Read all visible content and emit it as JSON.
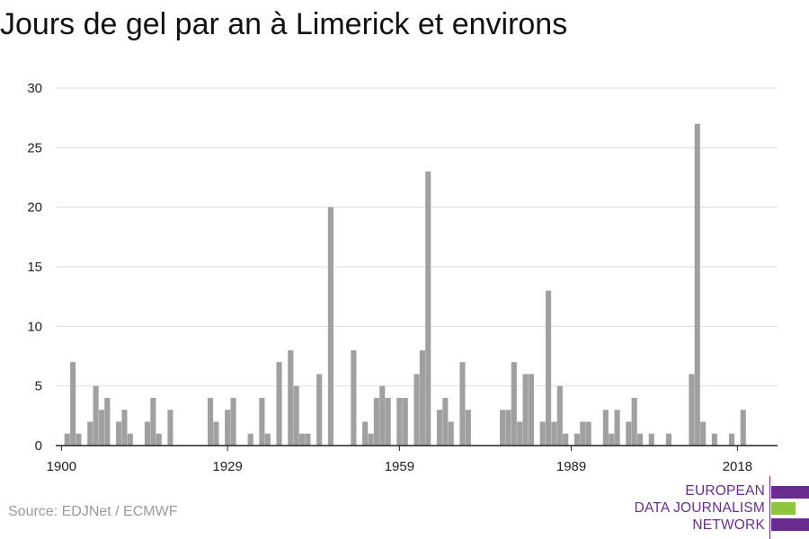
{
  "header": {
    "title": "Jours de gel par an à Limerick et environs"
  },
  "footer": {
    "source": "Source: EDJNet / ECMWF"
  },
  "logo": {
    "line1": "EUROPEAN",
    "line2": "DATA JOURNALISM",
    "line3": "NETWORK",
    "colors": {
      "purple": "#6a2c91",
      "green": "#8dc63f"
    }
  },
  "colors": {
    "bar": "#a0a0a0",
    "grid": "#dddddd",
    "axis": "#222222",
    "text": "#222222"
  },
  "chart_data": {
    "type": "bar",
    "title": "Jours de gel par an à Limerick et environs",
    "xlabel": "",
    "ylabel": "",
    "ylim": [
      0,
      30
    ],
    "y_ticks": [
      0,
      5,
      10,
      15,
      20,
      25,
      30
    ],
    "x_ticks": [
      1900,
      1929,
      1959,
      1989,
      2018
    ],
    "grid": true,
    "x": [
      1900,
      1901,
      1902,
      1903,
      1904,
      1905,
      1906,
      1907,
      1908,
      1909,
      1910,
      1911,
      1912,
      1913,
      1914,
      1915,
      1916,
      1917,
      1918,
      1919,
      1920,
      1921,
      1922,
      1923,
      1924,
      1925,
      1926,
      1927,
      1928,
      1929,
      1930,
      1931,
      1932,
      1933,
      1934,
      1935,
      1936,
      1937,
      1938,
      1939,
      1940,
      1941,
      1942,
      1943,
      1944,
      1945,
      1946,
      1947,
      1948,
      1949,
      1950,
      1951,
      1952,
      1953,
      1954,
      1955,
      1956,
      1957,
      1958,
      1959,
      1960,
      1961,
      1962,
      1963,
      1964,
      1965,
      1966,
      1967,
      1968,
      1969,
      1970,
      1971,
      1972,
      1973,
      1974,
      1975,
      1976,
      1977,
      1978,
      1979,
      1980,
      1981,
      1982,
      1983,
      1984,
      1985,
      1986,
      1987,
      1988,
      1989,
      1990,
      1991,
      1992,
      1993,
      1994,
      1995,
      1996,
      1997,
      1998,
      1999,
      2000,
      2001,
      2002,
      2003,
      2004,
      2005,
      2006,
      2007,
      2008,
      2009,
      2010,
      2011,
      2012,
      2013,
      2014,
      2015,
      2016,
      2017,
      2018,
      2019
    ],
    "values": [
      0,
      1,
      7,
      1,
      0,
      2,
      5,
      3,
      4,
      0,
      2,
      3,
      1,
      0,
      0,
      2,
      4,
      1,
      0,
      3,
      0,
      0,
      0,
      0,
      0,
      0,
      4,
      2,
      0,
      3,
      4,
      0,
      0,
      1,
      0,
      4,
      1,
      0,
      7,
      0,
      8,
      5,
      1,
      1,
      0,
      6,
      0,
      20,
      0,
      0,
      0,
      8,
      0,
      2,
      1,
      4,
      5,
      4,
      0,
      4,
      4,
      0,
      6,
      8,
      23,
      0,
      3,
      4,
      2,
      0,
      7,
      3,
      0,
      0,
      0,
      0,
      0,
      3,
      3,
      7,
      2,
      6,
      6,
      0,
      2,
      13,
      2,
      5,
      1,
      0,
      1,
      2,
      2,
      0,
      0,
      3,
      1,
      3,
      0,
      2,
      4,
      1,
      0,
      1,
      0,
      0,
      1,
      0,
      0,
      0,
      6,
      27,
      2,
      0,
      1,
      0,
      0,
      1,
      0,
      3
    ]
  }
}
